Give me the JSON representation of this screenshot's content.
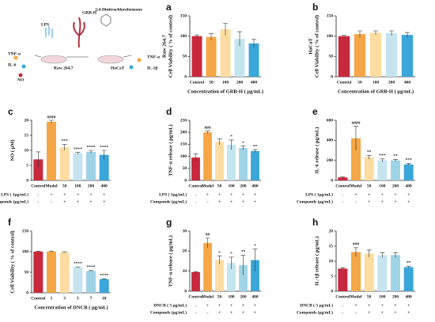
{
  "schematic": {
    "labels": [
      "LPS",
      "GRB-H",
      "2,4-Dinitrochlorobenzene",
      "TNF-α",
      "IL-6",
      "NO",
      "Raw 264.7",
      "HaCaT",
      "TNF-α",
      "IL-1β"
    ]
  },
  "chart_data": [
    {
      "type": "bar",
      "panel_label": "a",
      "categories": [
        "Control",
        "50",
        "100",
        "200",
        "400"
      ],
      "values": [
        100,
        98,
        117,
        93,
        82
      ],
      "errors": [
        3,
        8,
        15,
        18,
        10
      ],
      "colors": [
        "#c8283c",
        "#f5a646",
        "#fcdca0",
        "#c4e4f0",
        "#3aa6d9"
      ],
      "ylabel": [
        "Raw 264.7",
        "Cell Viability ( % of control)"
      ],
      "xlabel": "Concentration of GRB-H ( μg/mL)",
      "ylim": [
        0,
        150
      ],
      "yticks": [
        0,
        50,
        100,
        150
      ]
    },
    {
      "type": "bar",
      "panel_label": "b",
      "categories": [
        "Control",
        "50",
        "100",
        "200",
        "400"
      ],
      "values": [
        100,
        105,
        108,
        107,
        103
      ],
      "errors": [
        2,
        8,
        5,
        6,
        6
      ],
      "colors": [
        "#c8283c",
        "#f5a646",
        "#fcdca0",
        "#c4e4f0",
        "#3aa6d9"
      ],
      "ylabel": [
        "HaCaT",
        "Cell Viability ( % of control)"
      ],
      "xlabel": "Concentration of GRB-H ( μg/mL)",
      "ylim": [
        0,
        150
      ],
      "yticks": [
        0,
        50,
        100,
        150
      ]
    },
    {
      "type": "bar",
      "panel_label": "c",
      "categories": [
        "Control",
        "Model",
        "50",
        "100",
        "200",
        "400"
      ],
      "values": [
        7,
        19.5,
        11,
        9,
        9.5,
        8.5
      ],
      "errors": [
        2.5,
        0.5,
        1,
        0.3,
        0.5,
        1.5
      ],
      "colors": [
        "#c8283c",
        "#f5a646",
        "#fcdca0",
        "#c4e4f0",
        "#9fd3e6",
        "#3aa6d9"
      ],
      "ylabel": "NO ( μM)",
      "ylim": [
        0,
        20
      ],
      "yticks": [
        0,
        5,
        10,
        15,
        20
      ],
      "annotations": [
        null,
        "####",
        "***",
        "****",
        "****",
        "****"
      ],
      "treatments": [
        {
          "label": "LPS ( 1μg/mL)",
          "signs": [
            "-",
            "+",
            "+",
            "+",
            "+",
            "+"
          ]
        },
        {
          "label": "Componds (μg/mL)",
          "signs": [
            "-",
            "-",
            "+",
            "+",
            "+",
            "+"
          ]
        }
      ]
    },
    {
      "type": "bar",
      "panel_label": "d",
      "categories": [
        "Control",
        "Model",
        "50",
        "100",
        "200",
        "400"
      ],
      "values": [
        95,
        200,
        160,
        148,
        135,
        122
      ],
      "errors": [
        15,
        5,
        12,
        20,
        8,
        6
      ],
      "colors": [
        "#c8283c",
        "#f5a646",
        "#fcdca0",
        "#c4e4f0",
        "#9fd3e6",
        "#3aa6d9"
      ],
      "ylabel": "TNF-α release ( pg/mL)",
      "ylim": [
        0,
        250
      ],
      "yticks": [
        0,
        50,
        100,
        150,
        200,
        250
      ],
      "annotations": [
        null,
        "###",
        null,
        "*",
        "*",
        "**"
      ],
      "treatments": [
        {
          "label": "LPS ( 1μg/mL)",
          "signs": [
            "-",
            "+",
            "+",
            "+",
            "+",
            "+"
          ]
        },
        {
          "label": "Componds (μg/mL)",
          "signs": [
            "-",
            "-",
            "+",
            "+",
            "+",
            "+"
          ]
        }
      ]
    },
    {
      "type": "bar",
      "panel_label": "e",
      "categories": [
        "Control",
        "Model",
        "50",
        "100",
        "200",
        "400"
      ],
      "values": [
        30,
        420,
        230,
        200,
        200,
        160
      ],
      "errors": [
        5,
        120,
        20,
        15,
        10,
        10
      ],
      "colors": [
        "#c8283c",
        "#f5a646",
        "#fcdca0",
        "#c4e4f0",
        "#9fd3e6",
        "#3aa6d9"
      ],
      "ylabel": "IL-6 release ( pg/mL)",
      "ylim": [
        0,
        600
      ],
      "yticks": [
        0,
        200,
        400,
        600
      ],
      "annotations": [
        null,
        "####",
        "**",
        "***",
        "**",
        "***"
      ],
      "treatments": [
        {
          "label": "LPS ( 1μg/mL)",
          "signs": [
            "-",
            "+",
            "+",
            "+",
            "+",
            "+"
          ]
        },
        {
          "label": "Componds (μg/mL)",
          "signs": [
            "-",
            "-",
            "+",
            "+",
            "+",
            "+"
          ]
        }
      ]
    },
    {
      "type": "bar",
      "panel_label": "f",
      "categories": [
        "Control",
        "1",
        "3",
        "5",
        "7",
        "10"
      ],
      "values": [
        100,
        100,
        98,
        62,
        53,
        33
      ],
      "errors": [
        1,
        1,
        1,
        1,
        1,
        1
      ],
      "colors": [
        "#c8283c",
        "#f5a646",
        "#fcdca0",
        "#c4e4f0",
        "#9fd3e6",
        "#3aa6d9"
      ],
      "ylabel": "Cell Viability ( % of control)",
      "xlabel": "Concentration of DNCB ( μg/mL)",
      "ylim": [
        0,
        150
      ],
      "yticks": [
        0,
        50,
        100,
        150
      ],
      "annotations": [
        null,
        null,
        null,
        "****",
        "****",
        "****"
      ]
    },
    {
      "type": "bar",
      "panel_label": "g",
      "categories": [
        "Control",
        "Model",
        "50",
        "100",
        "200",
        "400"
      ],
      "values": [
        9.5,
        24,
        15.5,
        14,
        13,
        15.5
      ],
      "errors": [
        0.3,
        2.5,
        2,
        3,
        5,
        5.5
      ],
      "colors": [
        "#c8283c",
        "#f5a646",
        "#fcdca0",
        "#c4e4f0",
        "#9fd3e6",
        "#3aa6d9"
      ],
      "ylabel": "TNF-α release ( pg/mL)",
      "ylim": [
        0,
        30
      ],
      "yticks": [
        0,
        10,
        20,
        30
      ],
      "annotations": [
        null,
        "##",
        "*",
        "*",
        "**",
        "*"
      ],
      "treatments": [
        {
          "label": "DNCB ( 5 μg/mL)",
          "signs": [
            "-",
            "+",
            "+",
            "+",
            "+",
            "+"
          ]
        },
        {
          "label": "Componds (μg/mL)",
          "signs": [
            "-",
            "-",
            "+",
            "+",
            "+",
            "+"
          ]
        }
      ]
    },
    {
      "type": "bar",
      "panel_label": "h",
      "categories": [
        "Control",
        "Model",
        "50",
        "100",
        "200",
        "400"
      ],
      "values": [
        7.5,
        13,
        12.5,
        12,
        12,
        8
      ],
      "errors": [
        0.3,
        1.5,
        1.2,
        0.8,
        0.8,
        0.3
      ],
      "colors": [
        "#c8283c",
        "#f5a646",
        "#fcdca0",
        "#c4e4f0",
        "#9fd3e6",
        "#3aa6d9"
      ],
      "ylabel": "IL-1β release ( pg/mL)",
      "ylim": [
        0,
        20
      ],
      "yticks": [
        0,
        5,
        10,
        15,
        20
      ],
      "annotations": [
        null,
        "###",
        null,
        null,
        null,
        "**"
      ],
      "treatments": [
        {
          "label": "DNCB ( 5 μg/mL)",
          "signs": [
            "-",
            "+",
            "+",
            "+",
            "+",
            "+"
          ]
        },
        {
          "label": "Componds (μg/mL)",
          "signs": [
            "-",
            "-",
            "+",
            "+",
            "+",
            "+"
          ]
        }
      ]
    }
  ]
}
